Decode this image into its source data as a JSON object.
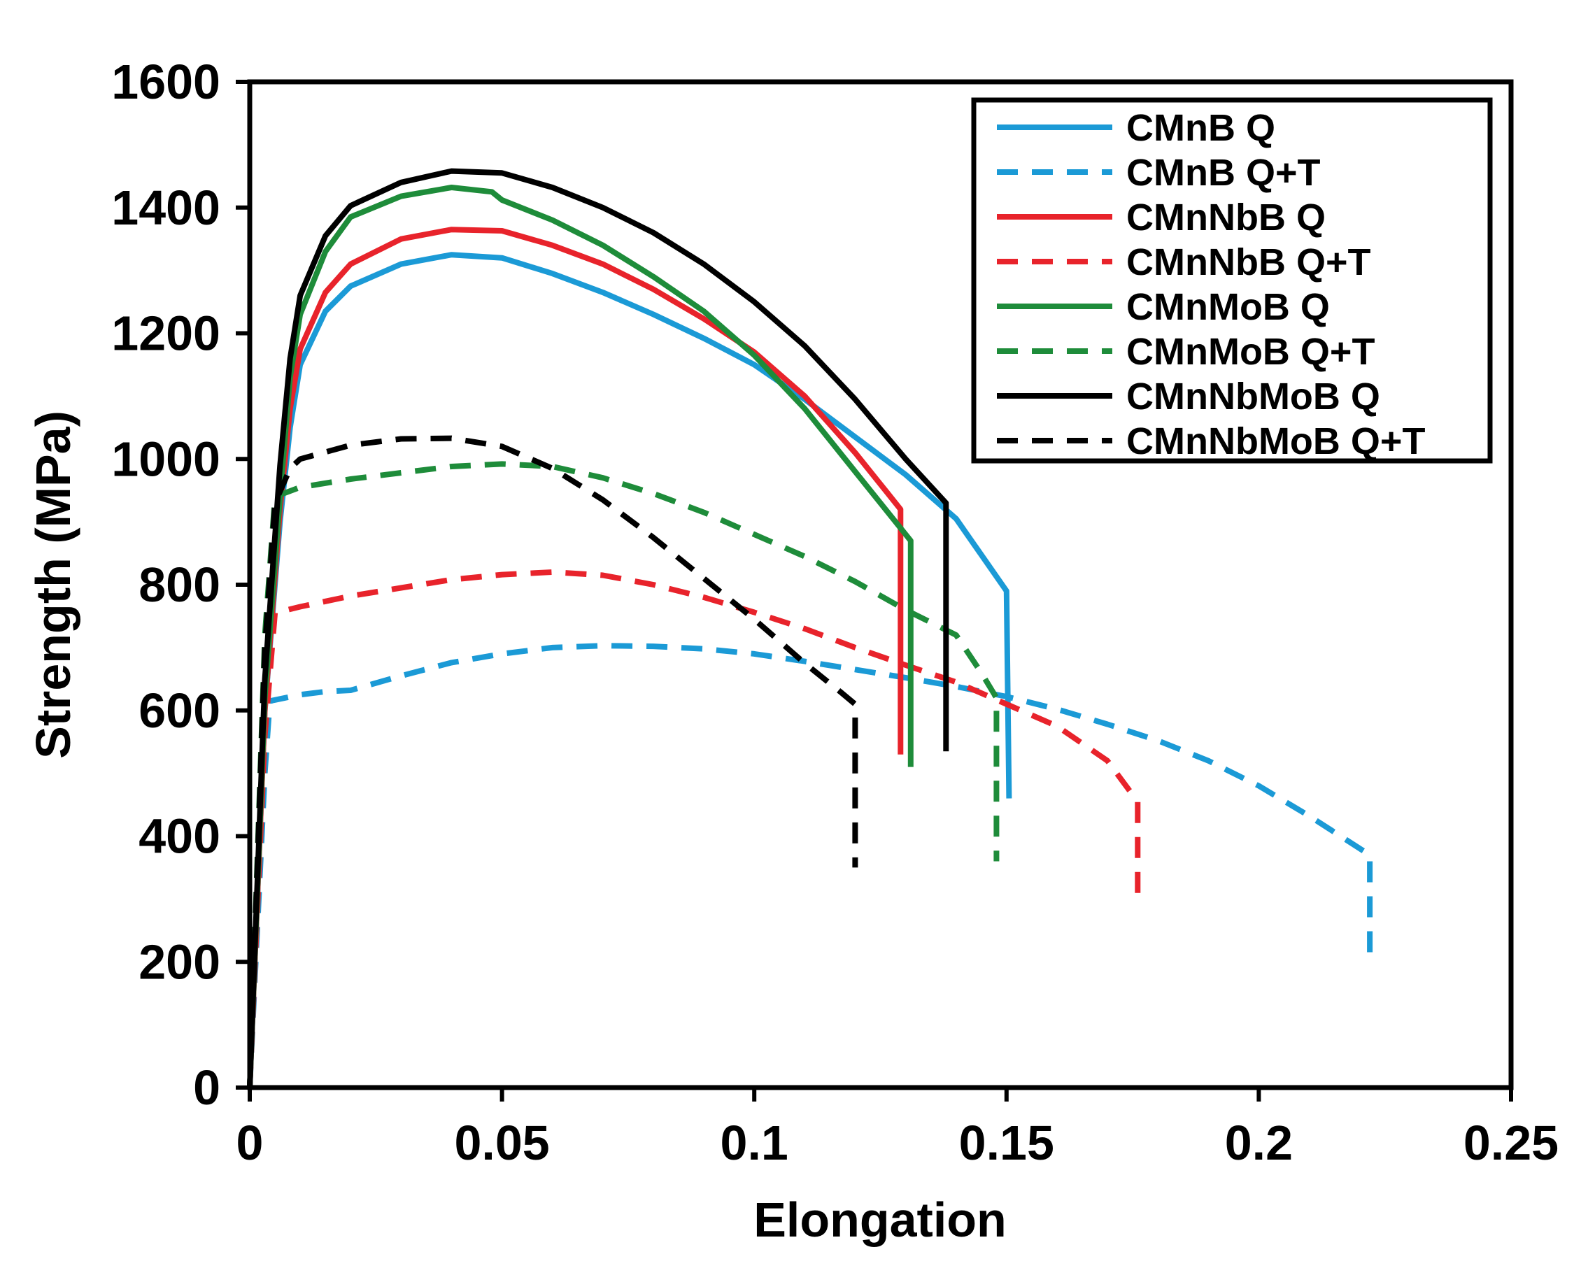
{
  "chart_data": {
    "type": "line",
    "title": "",
    "xlabel": "Elongation",
    "ylabel": "Strength (MPa)",
    "xlim": [
      0,
      0.25
    ],
    "ylim": [
      0,
      1600
    ],
    "xticks": [
      0,
      0.05,
      0.1,
      0.15,
      0.2,
      0.25
    ],
    "xtick_labels": [
      "0",
      "0.05",
      "0.1",
      "0.15",
      "0.2",
      "0.25"
    ],
    "yticks": [
      0,
      200,
      400,
      600,
      800,
      1000,
      1200,
      1400,
      1600
    ],
    "ytick_labels": [
      "0",
      "200",
      "400",
      "600",
      "800",
      "1000",
      "1200",
      "1400",
      "1600"
    ],
    "grid": false,
    "legend_position": "top-right",
    "series": [
      {
        "name": "CMnB Q",
        "color": "#1b9ad6",
        "dash": "solid",
        "points": [
          [
            0,
            0
          ],
          [
            0.003,
            600
          ],
          [
            0.006,
            900
          ],
          [
            0.008,
            1050
          ],
          [
            0.01,
            1150
          ],
          [
            0.015,
            1235
          ],
          [
            0.02,
            1275
          ],
          [
            0.03,
            1310
          ],
          [
            0.04,
            1325
          ],
          [
            0.05,
            1320
          ],
          [
            0.06,
            1295
          ],
          [
            0.07,
            1265
          ],
          [
            0.08,
            1230
          ],
          [
            0.09,
            1192
          ],
          [
            0.1,
            1150
          ],
          [
            0.11,
            1095
          ],
          [
            0.12,
            1035
          ],
          [
            0.13,
            975
          ],
          [
            0.14,
            905
          ],
          [
            0.15,
            790
          ],
          [
            0.1505,
            460
          ]
        ]
      },
      {
        "name": "CMnB Q+T",
        "color": "#1b9ad6",
        "dash": "dashed",
        "points": [
          [
            0,
            0
          ],
          [
            0.003,
            500
          ],
          [
            0.004,
            615
          ],
          [
            0.01,
            625
          ],
          [
            0.015,
            630
          ],
          [
            0.02,
            632
          ],
          [
            0.03,
            655
          ],
          [
            0.04,
            676
          ],
          [
            0.05,
            690
          ],
          [
            0.06,
            700
          ],
          [
            0.07,
            703
          ],
          [
            0.08,
            702
          ],
          [
            0.09,
            698
          ],
          [
            0.1,
            690
          ],
          [
            0.11,
            678
          ],
          [
            0.12,
            665
          ],
          [
            0.13,
            652
          ],
          [
            0.14,
            638
          ],
          [
            0.15,
            622
          ],
          [
            0.16,
            602
          ],
          [
            0.17,
            578
          ],
          [
            0.18,
            552
          ],
          [
            0.19,
            520
          ],
          [
            0.2,
            480
          ],
          [
            0.21,
            432
          ],
          [
            0.222,
            370
          ],
          [
            0.222,
            200
          ]
        ]
      },
      {
        "name": "CMnNbB Q",
        "color": "#e8232b",
        "dash": "solid",
        "points": [
          [
            0,
            0
          ],
          [
            0.003,
            600
          ],
          [
            0.006,
            920
          ],
          [
            0.008,
            1080
          ],
          [
            0.01,
            1175
          ],
          [
            0.015,
            1265
          ],
          [
            0.02,
            1310
          ],
          [
            0.03,
            1350
          ],
          [
            0.04,
            1365
          ],
          [
            0.05,
            1363
          ],
          [
            0.06,
            1340
          ],
          [
            0.07,
            1310
          ],
          [
            0.08,
            1270
          ],
          [
            0.09,
            1223
          ],
          [
            0.1,
            1170
          ],
          [
            0.11,
            1100
          ],
          [
            0.12,
            1010
          ],
          [
            0.125,
            960
          ],
          [
            0.129,
            920
          ],
          [
            0.129,
            530
          ]
        ]
      },
      {
        "name": "CMnNbB Q+T",
        "color": "#e8232b",
        "dash": "dashed",
        "points": [
          [
            0,
            0
          ],
          [
            0.003,
            560
          ],
          [
            0.005,
            755
          ],
          [
            0.01,
            765
          ],
          [
            0.02,
            782
          ],
          [
            0.03,
            795
          ],
          [
            0.04,
            808
          ],
          [
            0.05,
            816
          ],
          [
            0.06,
            820
          ],
          [
            0.07,
            815
          ],
          [
            0.08,
            800
          ],
          [
            0.09,
            780
          ],
          [
            0.1,
            756
          ],
          [
            0.11,
            730
          ],
          [
            0.12,
            700
          ],
          [
            0.13,
            672
          ],
          [
            0.14,
            645
          ],
          [
            0.15,
            610
          ],
          [
            0.16,
            575
          ],
          [
            0.17,
            520
          ],
          [
            0.176,
            455
          ],
          [
            0.176,
            300
          ]
        ]
      },
      {
        "name": "CMnMoB Q",
        "color": "#1e8c3a",
        "dash": "solid",
        "points": [
          [
            0,
            0
          ],
          [
            0.003,
            620
          ],
          [
            0.006,
            940
          ],
          [
            0.008,
            1130
          ],
          [
            0.01,
            1230
          ],
          [
            0.015,
            1330
          ],
          [
            0.02,
            1385
          ],
          [
            0.03,
            1418
          ],
          [
            0.04,
            1432
          ],
          [
            0.048,
            1425
          ],
          [
            0.05,
            1412
          ],
          [
            0.06,
            1380
          ],
          [
            0.07,
            1340
          ],
          [
            0.08,
            1290
          ],
          [
            0.09,
            1235
          ],
          [
            0.1,
            1165
          ],
          [
            0.11,
            1080
          ],
          [
            0.12,
            980
          ],
          [
            0.13,
            880
          ],
          [
            0.131,
            870
          ],
          [
            0.131,
            510
          ]
        ]
      },
      {
        "name": "CMnMoB Q+T",
        "color": "#1e8c3a",
        "dash": "dashed",
        "points": [
          [
            0,
            0
          ],
          [
            0.003,
            720
          ],
          [
            0.005,
            940
          ],
          [
            0.01,
            955
          ],
          [
            0.02,
            968
          ],
          [
            0.03,
            978
          ],
          [
            0.04,
            988
          ],
          [
            0.05,
            992
          ],
          [
            0.06,
            988
          ],
          [
            0.07,
            970
          ],
          [
            0.08,
            945
          ],
          [
            0.09,
            915
          ],
          [
            0.1,
            880
          ],
          [
            0.11,
            845
          ],
          [
            0.12,
            805
          ],
          [
            0.13,
            760
          ],
          [
            0.14,
            720
          ],
          [
            0.145,
            660
          ],
          [
            0.148,
            620
          ],
          [
            0.148,
            360
          ]
        ]
      },
      {
        "name": "CMnNbMoB Q",
        "color": "#000000",
        "dash": "solid",
        "points": [
          [
            0,
            0
          ],
          [
            0.003,
            650
          ],
          [
            0.006,
            990
          ],
          [
            0.008,
            1160
          ],
          [
            0.01,
            1260
          ],
          [
            0.015,
            1355
          ],
          [
            0.02,
            1403
          ],
          [
            0.03,
            1440
          ],
          [
            0.04,
            1458
          ],
          [
            0.05,
            1455
          ],
          [
            0.06,
            1432
          ],
          [
            0.07,
            1400
          ],
          [
            0.08,
            1360
          ],
          [
            0.09,
            1310
          ],
          [
            0.1,
            1250
          ],
          [
            0.11,
            1180
          ],
          [
            0.12,
            1095
          ],
          [
            0.13,
            1000
          ],
          [
            0.138,
            930
          ],
          [
            0.138,
            535
          ]
        ]
      },
      {
        "name": "CMnNbMoB Q+T",
        "color": "#000000",
        "dash": "dashed",
        "points": [
          [
            0,
            0
          ],
          [
            0.003,
            700
          ],
          [
            0.005,
            930
          ],
          [
            0.008,
            985
          ],
          [
            0.01,
            1000
          ],
          [
            0.02,
            1022
          ],
          [
            0.03,
            1032
          ],
          [
            0.04,
            1033
          ],
          [
            0.05,
            1020
          ],
          [
            0.06,
            985
          ],
          [
            0.07,
            935
          ],
          [
            0.08,
            875
          ],
          [
            0.09,
            810
          ],
          [
            0.1,
            745
          ],
          [
            0.11,
            675
          ],
          [
            0.117,
            630
          ],
          [
            0.12,
            610
          ],
          [
            0.12,
            350
          ]
        ]
      }
    ]
  }
}
